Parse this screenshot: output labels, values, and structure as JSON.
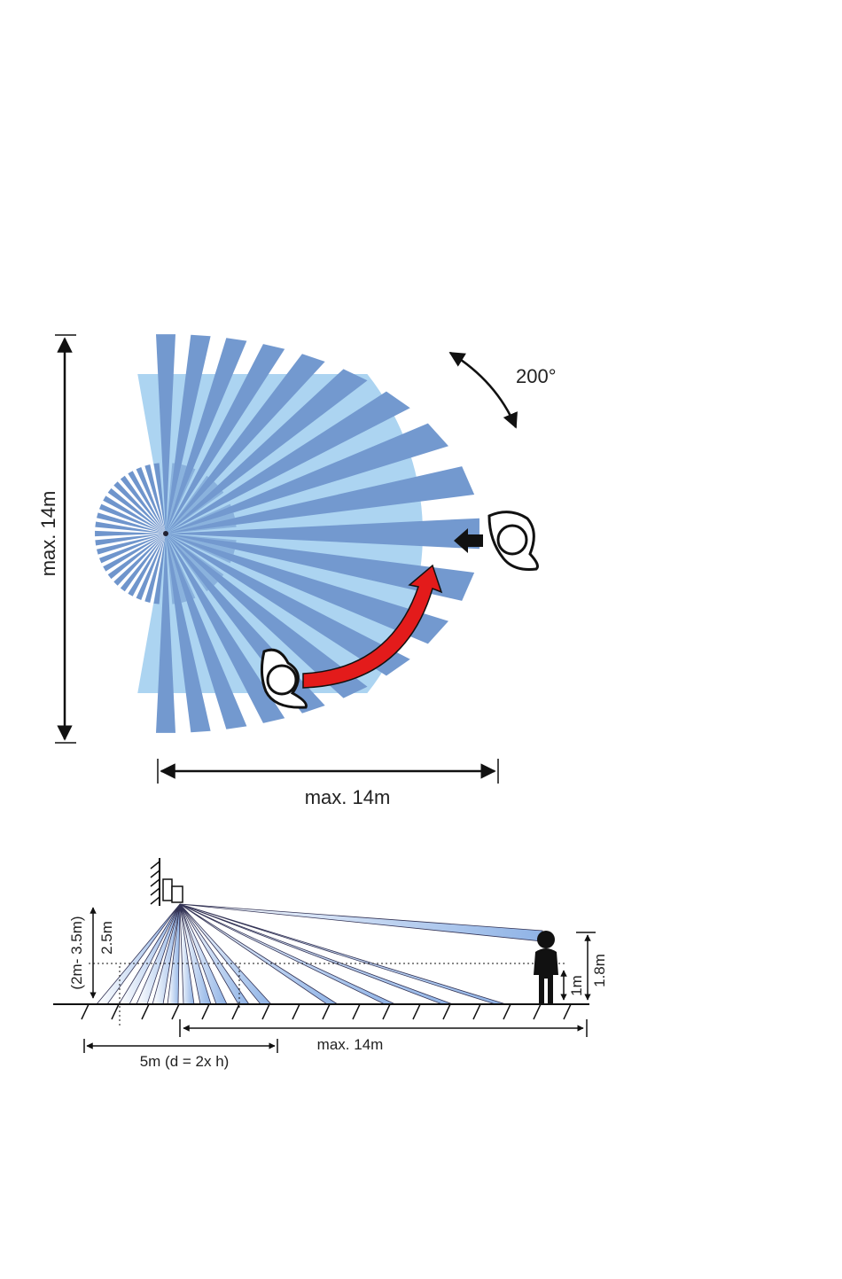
{
  "top_view": {
    "angle_label": "200°",
    "height_label": "max. 14m",
    "width_label": "max. 14m"
  },
  "side_view": {
    "mount_range_label": "(2m- 3.5m)",
    "mount_height_label": "2.5m",
    "range_label": "max. 14m",
    "near_zone_label": "5m (d = 2x h)",
    "low_height_label": "1m",
    "person_height_label": "1.8m"
  }
}
